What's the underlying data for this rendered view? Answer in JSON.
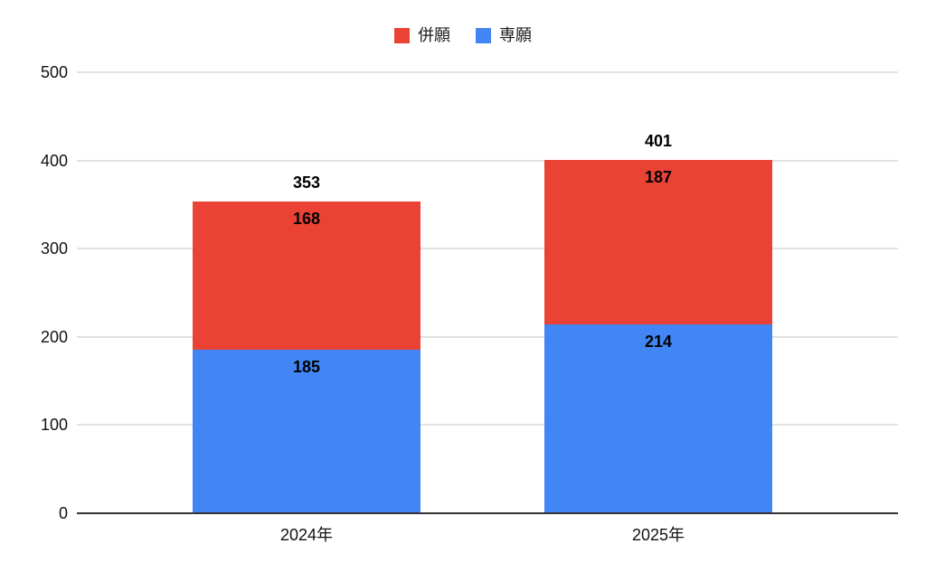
{
  "legend": {
    "position": "top",
    "items": [
      {
        "label": "併願",
        "color": "#EA4335"
      },
      {
        "label": "専願",
        "color": "#4285F4"
      }
    ]
  },
  "chart_data": {
    "type": "bar",
    "stacked": true,
    "title": "",
    "xlabel": "",
    "ylabel": "",
    "categories": [
      "2024年",
      "2025年"
    ],
    "series": [
      {
        "name": "専願",
        "color": "#4285F4",
        "values": [
          185,
          214
        ]
      },
      {
        "name": "併願",
        "color": "#EA4335",
        "values": [
          168,
          187
        ]
      }
    ],
    "totals": [
      353,
      401
    ],
    "total_labels": [
      "353",
      "401"
    ],
    "y_ticks": [
      0,
      100,
      200,
      300,
      400,
      500
    ],
    "ylim": [
      0,
      500
    ],
    "grid": true,
    "legend_position": "top",
    "colors": {
      "background": "#ffffff",
      "gridline": "#e2e2e2",
      "baseline": "#333333",
      "tick_text": "#111111",
      "data_label": "#000000"
    }
  }
}
